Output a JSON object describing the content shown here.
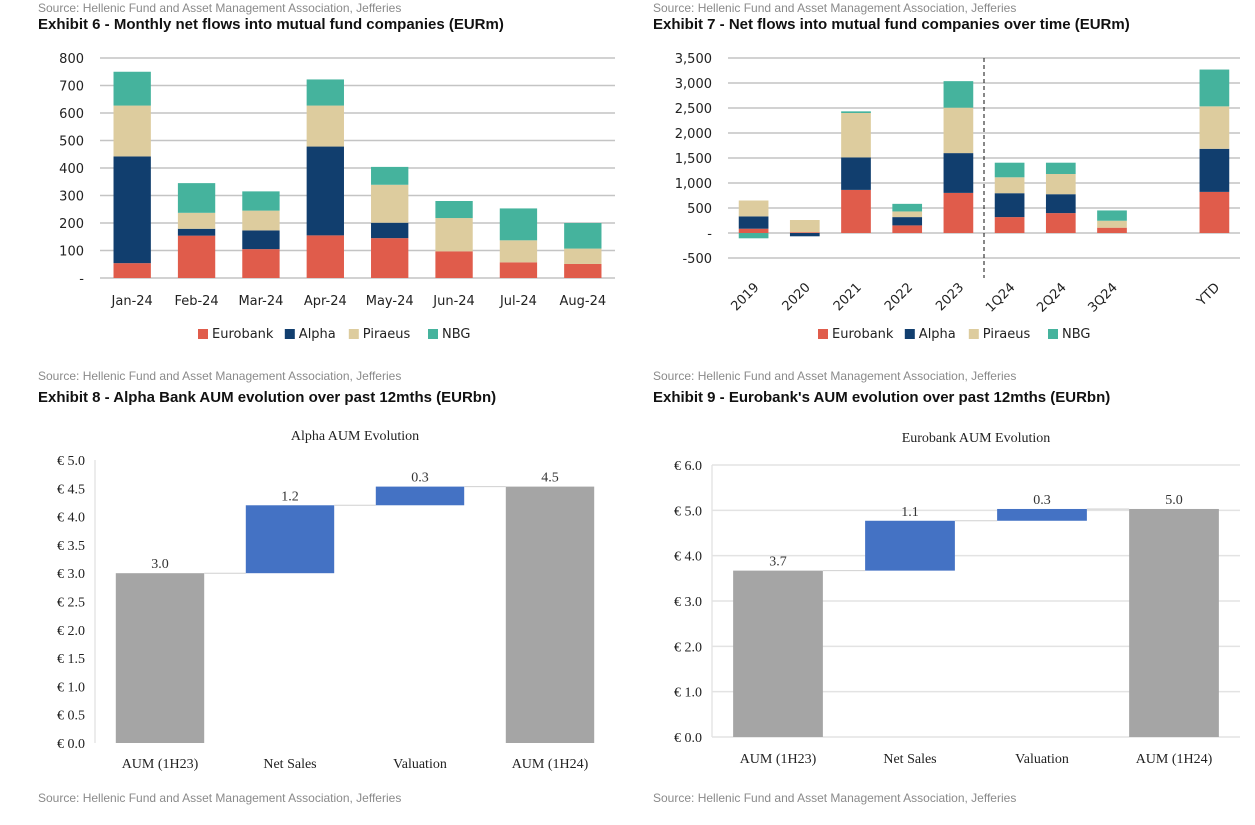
{
  "top_source": "Source: Hellenic Fund and Asset Management Association, Jefferies",
  "chart_data": [
    {
      "type": "bar",
      "stacked": true,
      "title": "Exhibit 6 - Monthly net flows into mutual fund companies (EURm)",
      "categories": [
        "Jan-24",
        "Feb-24",
        "Mar-24",
        "Apr-24",
        "May-24",
        "Jun-24",
        "Jul-24",
        "Aug-24"
      ],
      "series": [
        {
          "name": "Eurobank",
          "color": "#e05c4b",
          "values": [
            54,
            154,
            105,
            155,
            145,
            97,
            57,
            51
          ]
        },
        {
          "name": "Alpha",
          "color": "#113e6e",
          "values": [
            388,
            25,
            68,
            323,
            56,
            0,
            0,
            0
          ]
        },
        {
          "name": "Piraeus",
          "color": "#ddcc9e",
          "values": [
            185,
            58,
            72,
            149,
            138,
            121,
            80,
            56
          ]
        },
        {
          "name": "NBG",
          "color": "#45b39d",
          "values": [
            123,
            108,
            70,
            95,
            65,
            62,
            116,
            93
          ]
        }
      ],
      "ylim": [
        0,
        800
      ],
      "yticks": [
        0,
        100,
        200,
        300,
        400,
        500,
        600,
        700,
        800
      ],
      "ytick_labels": [
        "-",
        "100",
        "200",
        "300",
        "400",
        "500",
        "600",
        "700",
        "800"
      ],
      "grid": true,
      "legend": "bottom",
      "source": "Source: Hellenic Fund and Asset Management Association, Jefferies"
    },
    {
      "type": "bar",
      "stacked": true,
      "title": "Exhibit 7 - Net flows into mutual fund companies over time (EURm)",
      "categories": [
        "2019",
        "2020",
        "2021",
        "2022",
        "2023",
        "1Q24",
        "2Q24",
        "3Q24",
        "",
        "YTD"
      ],
      "series": [
        {
          "name": "Eurobank",
          "color": "#e05c4b",
          "values": [
            86,
            15,
            862,
            152,
            802,
            318,
            398,
            106,
            0,
            822
          ]
        },
        {
          "name": "Alpha",
          "color": "#113e6e",
          "values": [
            246,
            -66,
            650,
            166,
            796,
            478,
            378,
            0,
            0,
            862
          ]
        },
        {
          "name": "Piraeus",
          "color": "#ddcc9e",
          "values": [
            318,
            245,
            888,
            113,
            908,
            318,
            404,
            139,
            0,
            849
          ]
        },
        {
          "name": "NBG",
          "color": "#45b39d",
          "values": [
            -106,
            0,
            33,
            152,
            531,
            292,
            226,
            206,
            0,
            736
          ]
        }
      ],
      "ylim": [
        -500,
        3500
      ],
      "yticks": [
        -500,
        0,
        500,
        1000,
        1500,
        2000,
        2500,
        3000,
        3500
      ],
      "ytick_labels": [
        "-500",
        "-",
        "500",
        "1,000",
        "1,500",
        "2,000",
        "2,500",
        "3,000",
        "3,500"
      ],
      "grid": true,
      "legend": "bottom",
      "divider_after": "2023",
      "source": "Source: Hellenic Fund and Asset Management Association, Jefferies"
    },
    {
      "type": "waterfall",
      "title": "Exhibit 8 - Alpha Bank AUM evolution over past 12mths (EURbn)",
      "subtitle": "Alpha AUM Evolution",
      "categories": [
        "AUM (1H23)",
        "Net Sales",
        "Valuation",
        "AUM (1H24)"
      ],
      "values": [
        3.0,
        1.2,
        0.33,
        4.53
      ],
      "data_labels": [
        "3.0",
        "1.2",
        "0.3",
        "4.5"
      ],
      "kinds": [
        "total",
        "delta",
        "delta",
        "total"
      ],
      "ylim": [
        0,
        5
      ],
      "yticks": [
        0,
        0.5,
        1,
        1.5,
        2,
        2.5,
        3,
        3.5,
        4,
        4.5,
        5
      ],
      "ytick_labels": [
        "€ 0.0",
        "€ 0.5",
        "€ 1.0",
        "€ 1.5",
        "€ 2.0",
        "€ 2.5",
        "€ 3.0",
        "€ 3.5",
        "€ 4.0",
        "€ 4.5",
        "€ 5.0"
      ],
      "grid": false,
      "colors": {
        "total": "#a5a5a5",
        "delta": "#4472c4"
      },
      "source": "Source: Hellenic Fund and Asset Management Association, Jefferies"
    },
    {
      "type": "waterfall",
      "title": "Exhibit 9 - Eurobank's AUM evolution over past 12mths (EURbn)",
      "subtitle": "Eurobank AUM Evolution",
      "categories": [
        "AUM (1H23)",
        "Net Sales",
        "Valuation",
        "AUM (1H24)"
      ],
      "values": [
        3.67,
        1.1,
        0.26,
        5.03
      ],
      "data_labels": [
        "3.7",
        "1.1",
        "0.3",
        "5.0"
      ],
      "kinds": [
        "total",
        "delta",
        "delta",
        "total"
      ],
      "ylim": [
        0,
        6
      ],
      "yticks": [
        0,
        1,
        2,
        3,
        4,
        5,
        6
      ],
      "ytick_labels": [
        "€ 0.0",
        "€ 1.0",
        "€ 2.0",
        "€ 3.0",
        "€ 4.0",
        "€ 5.0",
        "€ 6.0"
      ],
      "grid": true,
      "colors": {
        "total": "#a5a5a5",
        "delta": "#4472c4"
      },
      "source": "Source: Hellenic Fund and Asset Management Association, Jefferies"
    }
  ]
}
